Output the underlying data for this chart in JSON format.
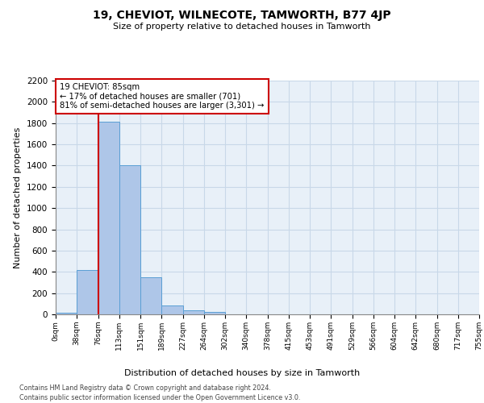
{
  "title": "19, CHEVIOT, WILNECOTE, TAMWORTH, B77 4JP",
  "subtitle": "Size of property relative to detached houses in Tamworth",
  "xlabel": "Distribution of detached houses by size in Tamworth",
  "ylabel": "Number of detached properties",
  "bin_labels": [
    "0sqm",
    "38sqm",
    "76sqm",
    "113sqm",
    "151sqm",
    "189sqm",
    "227sqm",
    "264sqm",
    "302sqm",
    "340sqm",
    "378sqm",
    "415sqm",
    "453sqm",
    "491sqm",
    "529sqm",
    "566sqm",
    "604sqm",
    "642sqm",
    "680sqm",
    "717sqm",
    "755sqm"
  ],
  "bar_values": [
    15,
    420,
    1810,
    1400,
    350,
    80,
    35,
    20,
    0,
    0,
    0,
    0,
    0,
    0,
    0,
    0,
    0,
    0,
    0,
    0
  ],
  "bar_color": "#aec6e8",
  "bar_edge_color": "#5a9fd4",
  "grid_color": "#c8d8e8",
  "bg_color": "#e8f0f8",
  "annotation_text": "19 CHEVIOT: 85sqm\n← 17% of detached houses are smaller (701)\n81% of semi-detached houses are larger (3,301) →",
  "annotation_box_color": "#ffffff",
  "annotation_box_edge": "#cc0000",
  "vline_color": "#cc0000",
  "vline_x": 2.0,
  "ylim": [
    0,
    2200
  ],
  "yticks": [
    0,
    200,
    400,
    600,
    800,
    1000,
    1200,
    1400,
    1600,
    1800,
    2000,
    2200
  ],
  "footer_line1": "Contains HM Land Registry data © Crown copyright and database right 2024.",
  "footer_line2": "Contains public sector information licensed under the Open Government Licence v3.0."
}
